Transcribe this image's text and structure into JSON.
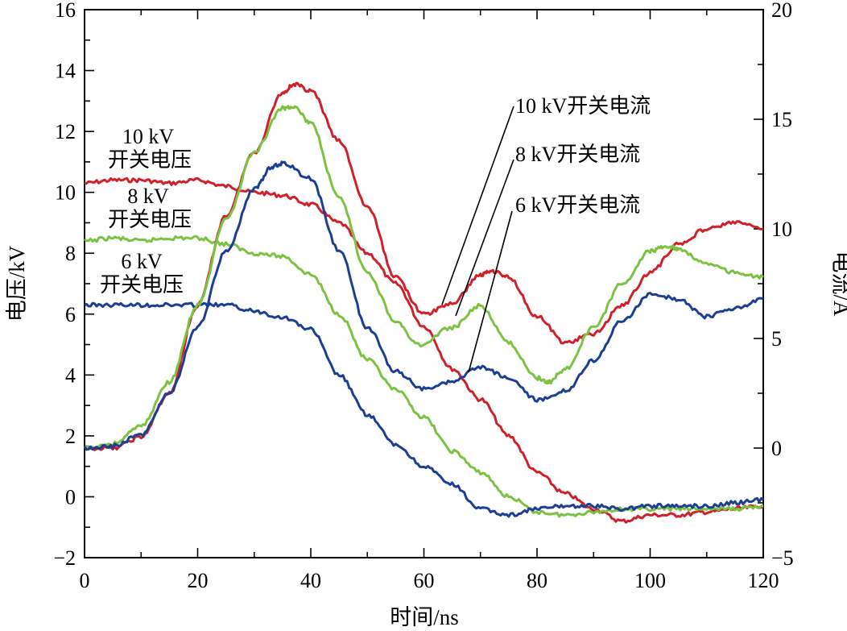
{
  "chart_data": {
    "type": "line",
    "xlabel": "时间/ns",
    "ylabel_left": "电压/kV",
    "ylabel_right": "电流/A",
    "xlim": [
      0,
      120
    ],
    "ylim_left": [
      -2,
      16
    ],
    "ylim_right": [
      -5,
      20
    ],
    "xticks": [
      "0",
      "20",
      "40",
      "60",
      "80",
      "100",
      "120"
    ],
    "yticks_left": [
      "−2",
      "0",
      "2",
      "4",
      "6",
      "8",
      "10",
      "12",
      "14",
      "16"
    ],
    "yticks_right": [
      "−5",
      "0",
      "5",
      "10",
      "15",
      "20"
    ],
    "grid": false,
    "colors": {
      "kv10": "#d0202a",
      "kv8": "#7cc242",
      "kv6": "#1c3f94"
    },
    "series": [
      {
        "name": "10 kV开关电压",
        "axis": "left",
        "color": "#d0202a",
        "x": [
          0,
          5,
          10,
          15,
          20,
          25,
          30,
          35,
          40,
          45,
          50,
          55,
          60,
          65,
          70,
          75,
          80,
          85,
          90,
          95,
          100,
          105,
          110,
          115,
          120
        ],
        "y": [
          10.3,
          10.4,
          10.4,
          10.3,
          10.4,
          10.2,
          10.0,
          9.9,
          9.6,
          9.0,
          8.0,
          7.0,
          5.6,
          4.2,
          3.2,
          2.0,
          0.8,
          0.1,
          -0.4,
          -0.8,
          -0.6,
          -0.6,
          -0.5,
          -0.4,
          -0.3
        ]
      },
      {
        "name": "8 kV开关电压",
        "axis": "left",
        "color": "#7cc242",
        "x": [
          0,
          5,
          10,
          15,
          20,
          25,
          30,
          35,
          40,
          45,
          50,
          55,
          60,
          65,
          70,
          75,
          80,
          85,
          90,
          95,
          100,
          105,
          110,
          115,
          120
        ],
        "y": [
          8.4,
          8.5,
          8.4,
          8.5,
          8.5,
          8.3,
          8.0,
          7.9,
          7.3,
          6.0,
          4.5,
          3.5,
          2.6,
          1.5,
          0.8,
          0.0,
          -0.5,
          -0.6,
          -0.5,
          -0.4,
          -0.4,
          -0.4,
          -0.4,
          -0.4,
          -0.3
        ]
      },
      {
        "name": "6 kV开关电压",
        "axis": "left",
        "color": "#1c3f94",
        "x": [
          0,
          5,
          10,
          15,
          20,
          25,
          30,
          35,
          40,
          45,
          50,
          55,
          60,
          65,
          70,
          75,
          80,
          85,
          90,
          95,
          100,
          105,
          110,
          115,
          120
        ],
        "y": [
          6.3,
          6.3,
          6.3,
          6.3,
          6.3,
          6.3,
          6.1,
          5.9,
          5.5,
          4.0,
          2.7,
          1.7,
          1.0,
          0.4,
          -0.4,
          -0.6,
          -0.4,
          -0.3,
          -0.3,
          -0.4,
          -0.3,
          -0.3,
          -0.3,
          -0.2,
          -0.1
        ]
      },
      {
        "name": "10 kV开关电流",
        "axis": "right",
        "color": "#d0202a",
        "x": [
          0,
          5,
          10,
          15,
          20,
          25,
          30,
          35,
          37,
          40,
          45,
          50,
          55,
          60,
          65,
          70,
          72,
          75,
          80,
          85,
          90,
          95,
          100,
          105,
          110,
          115,
          120
        ],
        "y": [
          0,
          0,
          0.5,
          2.5,
          6.5,
          10.6,
          13.5,
          16.2,
          16.6,
          16.3,
          14.0,
          11.0,
          7.8,
          6.1,
          6.6,
          7.9,
          8.1,
          7.8,
          6.0,
          4.8,
          5.2,
          6.5,
          8.0,
          9.3,
          10.0,
          10.3,
          10.0
        ]
      },
      {
        "name": "8 kV开关电流",
        "axis": "right",
        "color": "#7cc242",
        "x": [
          0,
          5,
          10,
          15,
          20,
          25,
          30,
          35,
          37,
          40,
          45,
          50,
          55,
          59,
          65,
          70,
          75,
          80,
          82,
          85,
          90,
          95,
          100,
          103,
          105,
          110,
          115,
          120
        ],
        "y": [
          0,
          0.2,
          1.0,
          3.0,
          6.5,
          10.4,
          13.5,
          15.5,
          15.6,
          14.8,
          11.4,
          8.0,
          5.8,
          4.7,
          5.5,
          6.5,
          4.8,
          3.2,
          3.0,
          3.6,
          5.5,
          7.5,
          9.0,
          9.2,
          9.1,
          8.4,
          8.0,
          7.8
        ]
      },
      {
        "name": "6 kV开关电流",
        "axis": "right",
        "color": "#1c3f94",
        "x": [
          0,
          5,
          10,
          15,
          20,
          25,
          30,
          33,
          35,
          40,
          45,
          50,
          55,
          60,
          65,
          70,
          75,
          80,
          85,
          90,
          95,
          100,
          105,
          110,
          115,
          120
        ],
        "y": [
          0,
          0.1,
          0.6,
          2.5,
          5.5,
          9.0,
          11.8,
          12.8,
          13.0,
          12.3,
          9.0,
          5.5,
          3.5,
          2.7,
          3.0,
          3.7,
          3.2,
          2.2,
          2.6,
          4.0,
          5.8,
          7.0,
          6.8,
          6.0,
          6.4,
          6.8
        ]
      }
    ],
    "annotations": {
      "v10": [
        "10 kV",
        "开关电压"
      ],
      "v8": [
        "8 kV",
        "开关电压"
      ],
      "v6": [
        "6 kV",
        "开关电压"
      ],
      "i10": "10 kV开关电流",
      "i8": "8 kV开关电流",
      "i6": "6 kV开关电流"
    }
  }
}
